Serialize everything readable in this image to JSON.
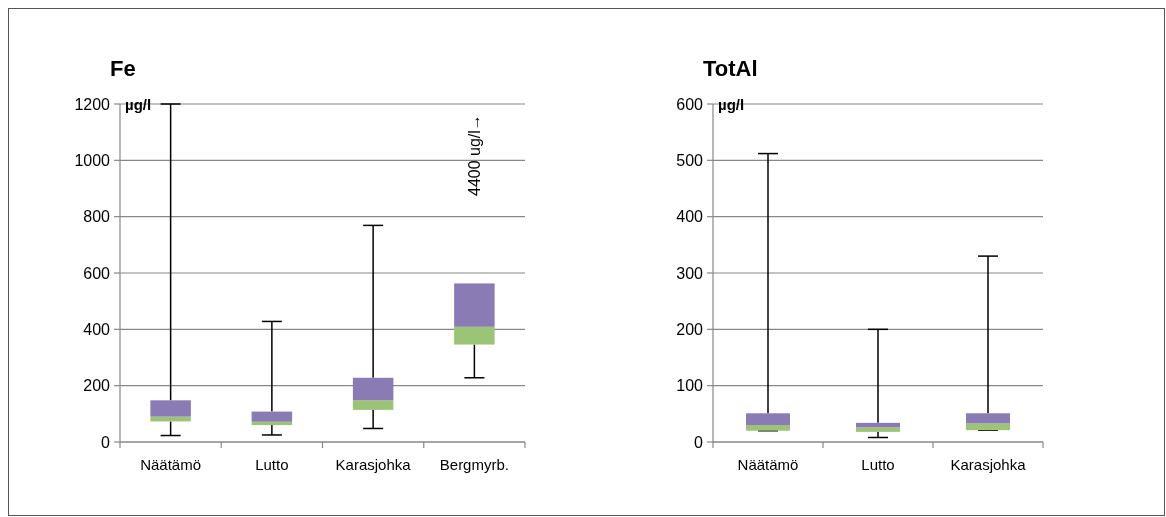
{
  "chart_data": [
    {
      "type": "box",
      "title": "Fe",
      "ylabel": "µg/l",
      "categories": [
        "Näätämö",
        "Lutto",
        "Karasjohka",
        "Bergmyrb."
      ],
      "color": "#8b7bb5",
      "colors": [
        "#9bc476",
        "#9bc476",
        "#9bc476",
        "#9bc476"
      ],
      "ylim": [
        0,
        1200
      ],
      "yticks": [
        0,
        200,
        400,
        600,
        800,
        1000,
        1200
      ],
      "grid": "y",
      "boxes": [
        {
          "low": 23,
          "q1": 73,
          "median": 90,
          "q3": 148,
          "high": 1200
        },
        {
          "low": 25,
          "q1": 60,
          "median": 72,
          "q3": 108,
          "high": 428
        },
        {
          "low": 48,
          "q1": 114,
          "median": 148,
          "q3": 228,
          "high": 769
        },
        {
          "low": 228,
          "q1": 346,
          "median": 409,
          "q3": 563
        }
      ],
      "annotations": [
        "4400 ug/l→"
      ]
    },
    {
      "type": "box",
      "title": "TotAl",
      "ylabel": "µg/l",
      "categories": [
        "Näätämö",
        "Lutto",
        "Karasjohka"
      ],
      "color": "#8b7bb5",
      "colors": [
        "#9bc476",
        "#9bc476",
        "#9bc476"
      ],
      "ylim": [
        0,
        600
      ],
      "yticks": [
        0,
        100,
        200,
        300,
        400,
        500,
        600
      ],
      "grid": "y",
      "boxes": [
        {
          "low": 20,
          "q1": 20,
          "median": 30,
          "q3": 51,
          "high": 512
        },
        {
          "low": 8,
          "q1": 18,
          "median": 26,
          "q3": 34,
          "high": 200
        },
        {
          "low": 21,
          "q1": 21,
          "median": 33,
          "q3": 51,
          "high": 330
        }
      ]
    }
  ]
}
